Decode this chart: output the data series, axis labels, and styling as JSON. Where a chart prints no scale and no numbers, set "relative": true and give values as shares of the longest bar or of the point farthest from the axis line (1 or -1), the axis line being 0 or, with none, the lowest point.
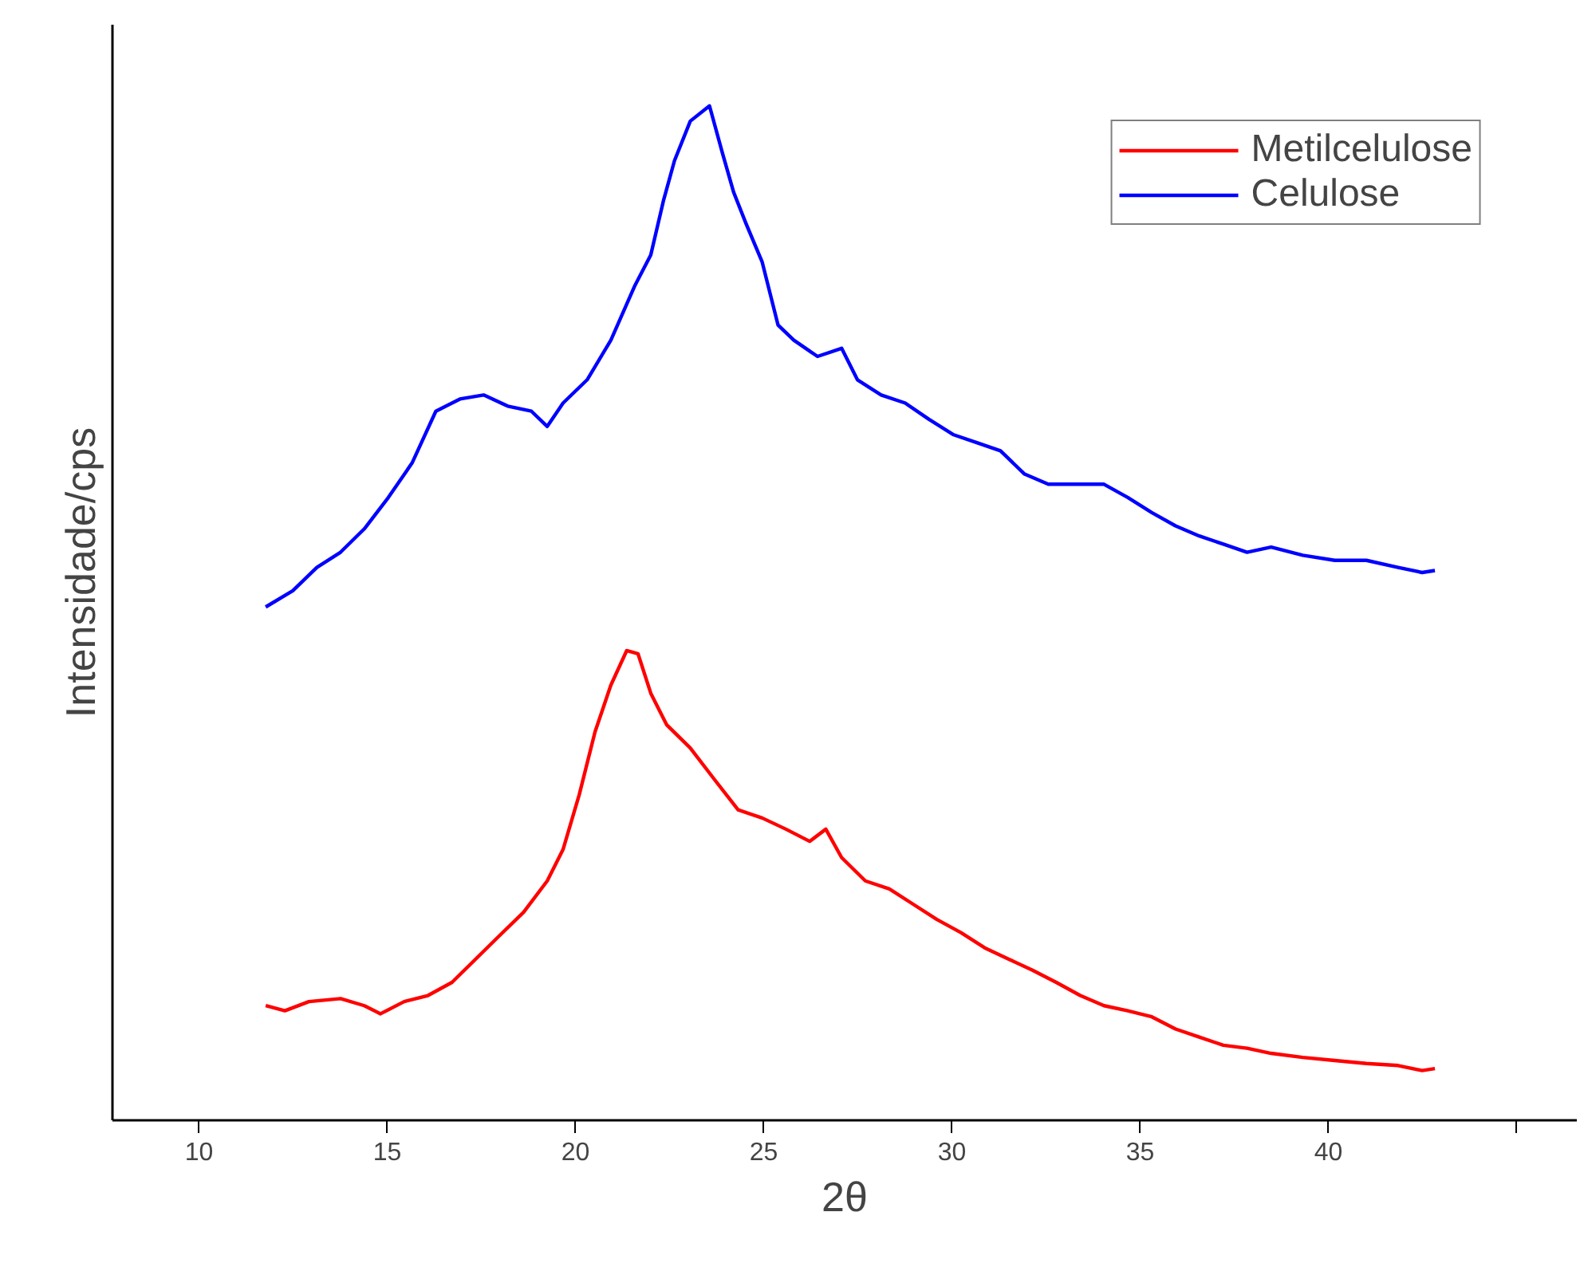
{
  "chart_data": {
    "type": "line",
    "relative": true,
    "xlabel": "2θ",
    "ylabel": "Intensidade/cps",
    "xlim": [
      7.7,
      46.6
    ],
    "xticks": [
      10,
      15,
      20,
      25,
      30,
      35,
      40,
      {
        "value": 45,
        "label": null
      }
    ],
    "grid": false,
    "legend": "top right",
    "line_style": "solid",
    "marker": "none",
    "series": [
      {
        "name": "Metilcelulose",
        "color": "#ff0000",
        "x": [
          11.77,
          12.28,
          12.92,
          13.76,
          14.39,
          14.82,
          15.45,
          16.08,
          16.72,
          17.35,
          17.98,
          18.62,
          19.25,
          19.67,
          20.1,
          20.52,
          20.94,
          21.36,
          21.66,
          22.0,
          22.42,
          23.05,
          23.69,
          24.32,
          24.96,
          25.59,
          26.22,
          26.65,
          27.07,
          27.7,
          28.34,
          28.97,
          29.6,
          30.24,
          30.87,
          31.5,
          32.14,
          32.77,
          33.41,
          34.04,
          34.67,
          35.31,
          35.94,
          36.57,
          37.21,
          37.84,
          38.48,
          39.32,
          40.17,
          41.01,
          41.85,
          42.49,
          42.83
        ],
        "values": [
          0.113,
          0.108,
          0.117,
          0.12,
          0.113,
          0.105,
          0.117,
          0.123,
          0.136,
          0.159,
          0.182,
          0.205,
          0.236,
          0.267,
          0.321,
          0.383,
          0.429,
          0.463,
          0.46,
          0.421,
          0.39,
          0.367,
          0.336,
          0.306,
          0.298,
          0.287,
          0.275,
          0.287,
          0.259,
          0.236,
          0.228,
          0.213,
          0.198,
          0.185,
          0.17,
          0.159,
          0.148,
          0.136,
          0.123,
          0.113,
          0.108,
          0.102,
          0.09,
          0.082,
          0.074,
          0.071,
          0.066,
          0.062,
          0.059,
          0.056,
          0.054,
          0.049,
          0.051
        ]
      },
      {
        "name": "Celulose",
        "color": "#0000ff",
        "x": [
          11.77,
          12.49,
          13.13,
          13.76,
          14.39,
          15.03,
          15.66,
          16.29,
          16.93,
          17.56,
          18.2,
          18.83,
          19.25,
          19.67,
          20.31,
          20.94,
          21.58,
          22.0,
          22.34,
          22.63,
          23.05,
          23.56,
          23.9,
          24.2,
          24.53,
          24.96,
          25.38,
          25.8,
          26.43,
          27.07,
          27.49,
          28.12,
          28.76,
          29.39,
          30.03,
          30.66,
          31.29,
          31.93,
          32.56,
          33.19,
          34.04,
          34.67,
          35.31,
          35.94,
          36.57,
          37.21,
          37.84,
          38.48,
          39.32,
          40.17,
          41.01,
          41.85,
          42.49,
          42.83
        ],
        "values": [
          0.506,
          0.522,
          0.545,
          0.56,
          0.583,
          0.614,
          0.648,
          0.699,
          0.711,
          0.715,
          0.704,
          0.699,
          0.684,
          0.707,
          0.73,
          0.769,
          0.823,
          0.853,
          0.907,
          0.946,
          0.985,
          1.0,
          0.954,
          0.915,
          0.884,
          0.846,
          0.784,
          0.769,
          0.753,
          0.761,
          0.73,
          0.715,
          0.707,
          0.691,
          0.676,
          0.668,
          0.66,
          0.637,
          0.627,
          0.627,
          0.627,
          0.614,
          0.599,
          0.586,
          0.576,
          0.568,
          0.56,
          0.565,
          0.557,
          0.552,
          0.552,
          0.545,
          0.54,
          0.542
        ]
      }
    ]
  }
}
